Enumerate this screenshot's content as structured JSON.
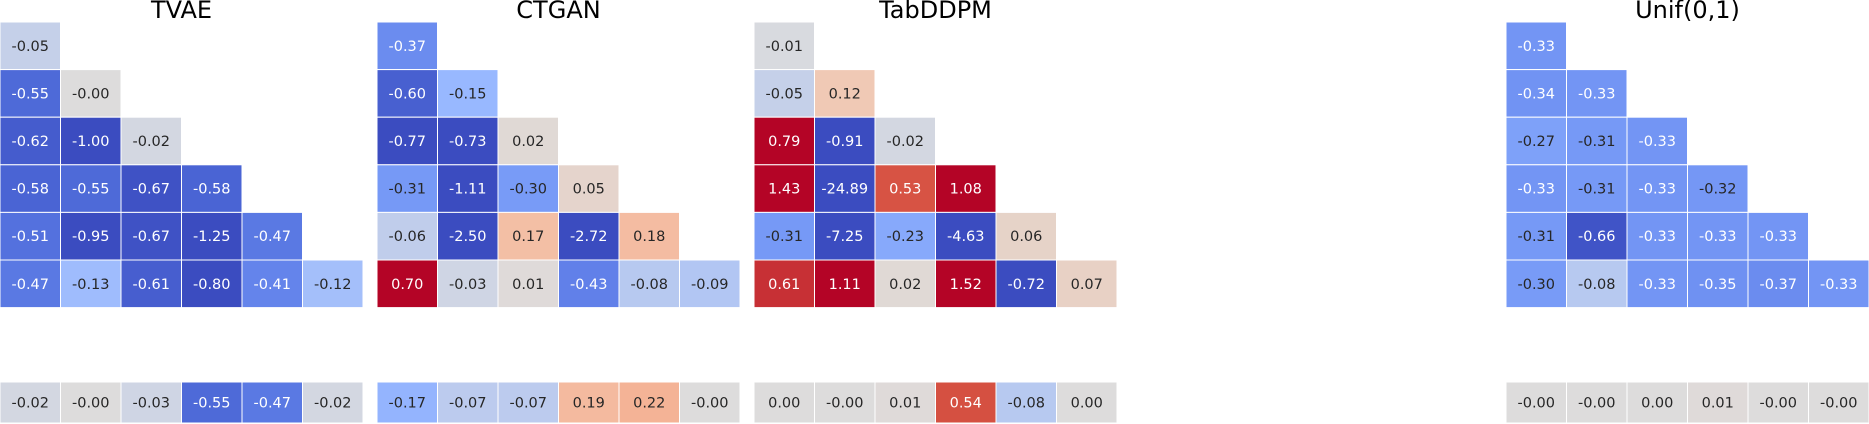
{
  "chart_data": [
    {
      "type": "heatmap",
      "title": "TVAE",
      "lower_triangle": [
        [
          "-0.05"
        ],
        [
          "-0.55",
          "-0.00"
        ],
        [
          "-0.62",
          "-1.00",
          "-0.02"
        ],
        [
          "-0.58",
          "-0.55",
          "-0.67",
          "-0.58"
        ],
        [
          "-0.51",
          "-0.95",
          "-0.67",
          "-1.25",
          "-0.47"
        ],
        [
          "-0.47",
          "-0.13",
          "-0.61",
          "-0.80",
          "-0.41",
          "-0.12"
        ]
      ],
      "bottom_row": [
        "-0.02",
        "-0.00",
        "-0.03",
        "-0.55",
        "-0.47",
        "-0.02"
      ]
    },
    {
      "type": "heatmap",
      "title": "CTGAN",
      "lower_triangle": [
        [
          "-0.37"
        ],
        [
          "-0.60",
          "-0.15"
        ],
        [
          "-0.77",
          "-0.73",
          "0.02"
        ],
        [
          "-0.31",
          "-1.11",
          "-0.30",
          "0.05"
        ],
        [
          "-0.06",
          "-2.50",
          "0.17",
          "-2.72",
          "0.18"
        ],
        [
          "0.70",
          "-0.03",
          "0.01",
          "-0.43",
          "-0.08",
          "-0.09"
        ]
      ],
      "bottom_row": [
        "-0.17",
        "-0.07",
        "-0.07",
        "0.19",
        "0.22",
        "-0.00"
      ]
    },
    {
      "type": "heatmap",
      "title": "TabDDPM",
      "lower_triangle": [
        [
          "-0.01"
        ],
        [
          "-0.05",
          "0.12"
        ],
        [
          "0.79",
          "-0.91",
          "-0.02"
        ],
        [
          "1.43",
          "-24.89",
          "0.53",
          "1.08"
        ],
        [
          "-0.31",
          "-7.25",
          "-0.23",
          "-4.63",
          "0.06"
        ],
        [
          "0.61",
          "1.11",
          "0.02",
          "1.52",
          "-0.72",
          "0.07"
        ]
      ],
      "bottom_row": [
        "0.00",
        "-0.00",
        "0.01",
        "0.54",
        "-0.08",
        "0.00"
      ]
    },
    {
      "type": "heatmap",
      "title": "Unif(0,1)",
      "lower_triangle": [
        [
          "-0.33"
        ],
        [
          "-0.34",
          "-0.33"
        ],
        [
          "-0.27",
          "-0.31",
          "-0.33"
        ],
        [
          "-0.33",
          "-0.31",
          "-0.33",
          "-0.32"
        ],
        [
          "-0.31",
          "-0.66",
          "-0.33",
          "-0.33",
          "-0.33"
        ],
        [
          "-0.30",
          "-0.08",
          "-0.33",
          "-0.35",
          "-0.37",
          "-0.33"
        ]
      ],
      "bottom_row": [
        "-0.00",
        "-0.00",
        "0.00",
        "0.01",
        "-0.00",
        "-0.00"
      ]
    }
  ],
  "colors": {
    "colormap": "coolwarm",
    "neutral": "#dddcdc",
    "cool_extreme": "#3b4cc0",
    "warm_extreme": "#b40426",
    "scale_limit": 0.7
  }
}
